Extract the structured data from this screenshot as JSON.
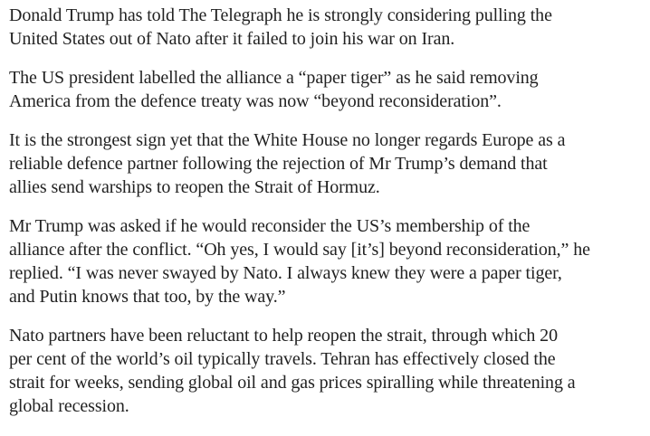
{
  "article": {
    "paragraphs": [
      {
        "lines": [
          "Donald Trump has told The Telegraph he is strongly considering pulling the",
          "United States out of Nato after it failed to join his war on Iran."
        ]
      },
      {
        "lines": [
          "The US president labelled the alliance a “paper tiger” as he said removing",
          "America from the defence treaty was now “beyond reconsideration”."
        ]
      },
      {
        "lines": [
          "It is the strongest sign yet that the White House no longer regards Europe as a",
          "reliable defence partner following the rejection of Mr Trump’s demand that",
          "allies send warships to reopen the Strait of Hormuz."
        ]
      },
      {
        "lines": [
          "Mr Trump was asked if he would reconsider the US’s membership of the",
          "alliance after the conflict. “Oh yes, I would say [it’s] beyond reconsideration,” he",
          "replied. “I was never swayed by Nato. I always knew they were a paper tiger,",
          "and Putin knows that too, by the way.”"
        ]
      },
      {
        "lines": [
          "Nato partners have been reluctant to help reopen the strait, through which 20",
          "per cent of the world’s oil typically travels. Tehran has effectively closed the",
          "strait for weeks, sending global oil and gas prices spiralling while threatening a",
          "global recession."
        ]
      }
    ]
  }
}
